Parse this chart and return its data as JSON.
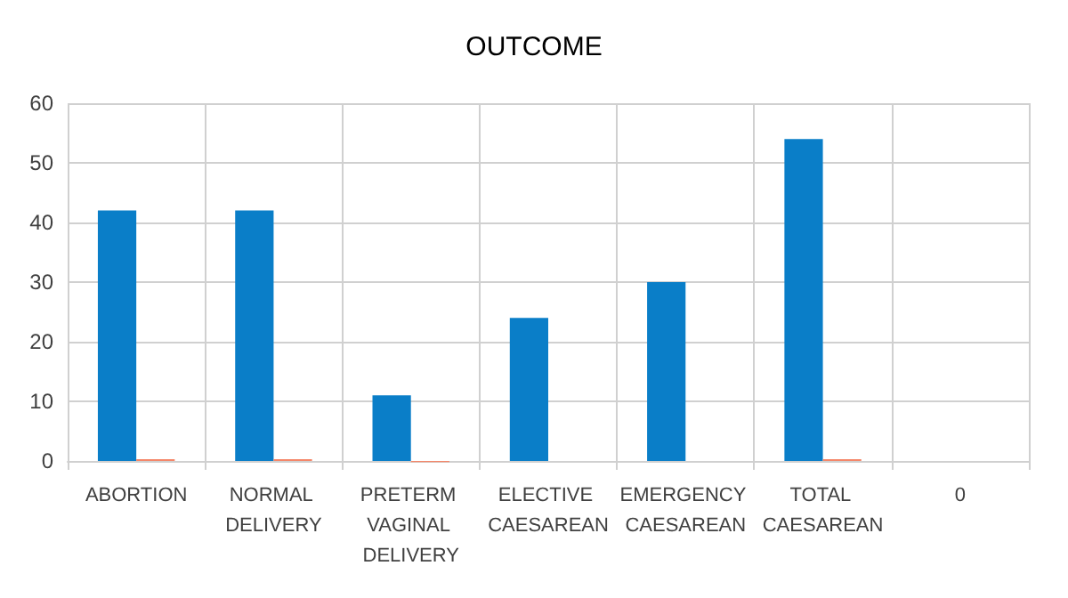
{
  "chart_data": {
    "type": "bar",
    "title": "OUTCOME",
    "categories": [
      "ABORTION",
      "NORMAL DELIVERY",
      "PRETERM VAGINAL DELIVERY",
      "ELECTIVE CAESAREAN",
      "EMERGENCY CAESAREAN",
      "TOTAL CAESAREAN",
      "0"
    ],
    "series": [
      {
        "color": "#0a7ec8",
        "values": [
          42,
          42,
          11,
          24,
          30,
          54,
          null
        ]
      },
      {
        "color": "#f4876a",
        "values": [
          0.3,
          0.3,
          -0.2,
          null,
          null,
          0.3,
          null
        ]
      }
    ],
    "ylim": [
      -0.3,
      60
    ],
    "yticks": [
      0,
      10,
      20,
      30,
      40,
      50,
      60
    ],
    "grid": true
  }
}
